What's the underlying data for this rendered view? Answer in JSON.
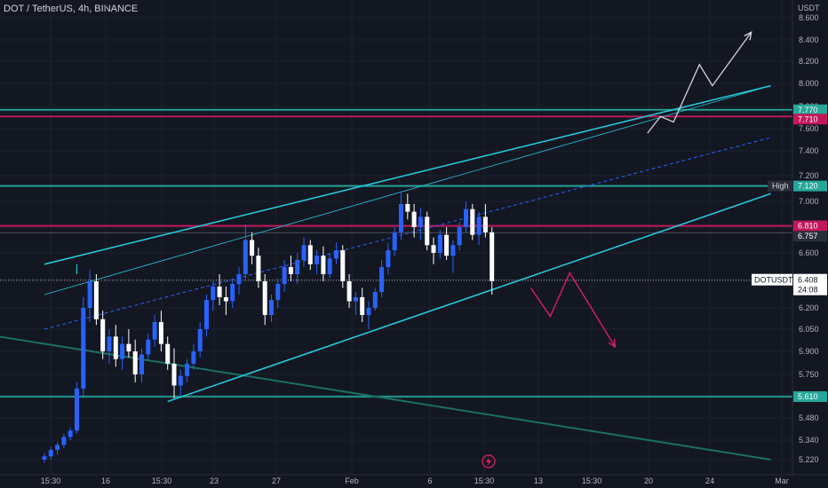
{
  "header": {
    "title": "DOT / TetherUS, 4h, BINANCE"
  },
  "colors": {
    "background": "#131722",
    "up": "#2962ff",
    "down": "#ffffff",
    "channel": "#26c6da",
    "resistance_teal": "#26a69a",
    "resistance_magenta": "#c2185b",
    "trend_teal": "#1b6f64",
    "projection_up": "#d1d4dc",
    "projection_down": "#e91e63"
  },
  "chart_data": {
    "type": "candlestick",
    "symbol": "DOTUSDT",
    "interval": "4h",
    "y_unit": "USDT",
    "ylim": [
      5.16,
      8.75
    ],
    "y_ticks": [
      "8.600",
      "8.400",
      "8.200",
      "8.000",
      "7.800",
      "7.600",
      "7.400",
      "7.200",
      "7.000",
      "6.800",
      "6.600",
      "6.400",
      "6.200",
      "6.050",
      "5.900",
      "5.750",
      "5.610",
      "5.480",
      "5.340",
      "5.220"
    ],
    "x_ticks": [
      "15:30",
      "16",
      "15:30",
      "23",
      "27",
      "Feb",
      "6",
      "15:30",
      "13",
      "15:30",
      "20",
      "24",
      "Mar"
    ],
    "current_price": {
      "label": "DOTUSDT",
      "value": "6.408",
      "countdown": "24:08"
    },
    "price_tags": [
      {
        "value": "7.770",
        "color": "#26a69a"
      },
      {
        "value": "7.710",
        "color": "#c2185b"
      },
      {
        "value": "7.120",
        "color": "#26a69a",
        "label": "High"
      },
      {
        "value": "6.810",
        "color": "#c2185b"
      },
      {
        "value": "6.757",
        "color": "#2a2e39"
      },
      {
        "value": "5.610",
        "color": "#26a69a"
      }
    ],
    "horizontal_levels": [
      {
        "price": 7.77,
        "color": "#26a69a"
      },
      {
        "price": 7.71,
        "color": "#c2185b"
      },
      {
        "price": 7.12,
        "color": "#26a69a"
      },
      {
        "price": 6.81,
        "color": "#c2185b"
      },
      {
        "price": 5.61,
        "color": "#26a69a"
      }
    ],
    "candles": [
      [
        5.22,
        5.26,
        5.2,
        5.24
      ],
      [
        5.24,
        5.3,
        5.22,
        5.28
      ],
      [
        5.28,
        5.33,
        5.25,
        5.31
      ],
      [
        5.31,
        5.38,
        5.29,
        5.36
      ],
      [
        5.36,
        5.42,
        5.34,
        5.4
      ],
      [
        5.4,
        5.7,
        5.38,
        5.66
      ],
      [
        5.66,
        6.28,
        5.6,
        6.2
      ],
      [
        6.2,
        6.48,
        6.1,
        6.4
      ],
      [
        6.4,
        6.45,
        6.08,
        6.12
      ],
      [
        6.12,
        6.18,
        5.85,
        5.9
      ],
      [
        5.9,
        6.05,
        5.82,
        6.0
      ],
      [
        6.0,
        6.08,
        5.8,
        5.85
      ],
      [
        5.85,
        6.0,
        5.78,
        5.95
      ],
      [
        5.95,
        6.05,
        5.86,
        5.9
      ],
      [
        5.9,
        5.98,
        5.7,
        5.75
      ],
      [
        5.75,
        5.92,
        5.7,
        5.88
      ],
      [
        5.88,
        6.02,
        5.84,
        5.98
      ],
      [
        5.98,
        6.15,
        5.93,
        6.1
      ],
      [
        6.1,
        6.18,
        5.9,
        5.95
      ],
      [
        5.95,
        6.0,
        5.78,
        5.82
      ],
      [
        5.82,
        5.92,
        5.6,
        5.68
      ],
      [
        5.68,
        5.78,
        5.62,
        5.74
      ],
      [
        5.74,
        5.85,
        5.7,
        5.82
      ],
      [
        5.82,
        5.95,
        5.78,
        5.9
      ],
      [
        5.9,
        6.1,
        5.86,
        6.05
      ],
      [
        6.05,
        6.3,
        6.0,
        6.26
      ],
      [
        6.26,
        6.4,
        6.18,
        6.36
      ],
      [
        6.36,
        6.45,
        6.22,
        6.28
      ],
      [
        6.28,
        6.36,
        6.15,
        6.25
      ],
      [
        6.25,
        6.42,
        6.2,
        6.38
      ],
      [
        6.38,
        6.5,
        6.3,
        6.45
      ],
      [
        6.45,
        6.82,
        6.4,
        6.7
      ],
      [
        6.7,
        6.76,
        6.52,
        6.58
      ],
      [
        6.58,
        6.64,
        6.35,
        6.4
      ],
      [
        6.4,
        6.45,
        6.08,
        6.15
      ],
      [
        6.15,
        6.3,
        6.1,
        6.26
      ],
      [
        6.26,
        6.42,
        6.2,
        6.38
      ],
      [
        6.38,
        6.55,
        6.32,
        6.5
      ],
      [
        6.5,
        6.58,
        6.4,
        6.45
      ],
      [
        6.45,
        6.6,
        6.38,
        6.55
      ],
      [
        6.55,
        6.72,
        6.5,
        6.66
      ],
      [
        6.66,
        6.7,
        6.48,
        6.52
      ],
      [
        6.52,
        6.62,
        6.45,
        6.58
      ],
      [
        6.58,
        6.65,
        6.4,
        6.45
      ],
      [
        6.45,
        6.6,
        6.42,
        6.56
      ],
      [
        6.56,
        6.68,
        6.52,
        6.62
      ],
      [
        6.62,
        6.66,
        6.35,
        6.4
      ],
      [
        6.4,
        6.45,
        6.2,
        6.25
      ],
      [
        6.25,
        6.32,
        6.15,
        6.28
      ],
      [
        6.28,
        6.35,
        6.1,
        6.15
      ],
      [
        6.15,
        6.25,
        6.05,
        6.2
      ],
      [
        6.2,
        6.35,
        6.18,
        6.32
      ],
      [
        6.32,
        6.55,
        6.28,
        6.5
      ],
      [
        6.5,
        6.68,
        6.45,
        6.62
      ],
      [
        6.62,
        6.8,
        6.58,
        6.76
      ],
      [
        6.76,
        7.08,
        6.7,
        6.98
      ],
      [
        6.98,
        7.06,
        6.86,
        6.92
      ],
      [
        6.92,
        6.98,
        6.72,
        6.8
      ],
      [
        6.8,
        6.95,
        6.7,
        6.88
      ],
      [
        6.88,
        6.92,
        6.62,
        6.66
      ],
      [
        6.66,
        6.72,
        6.52,
        6.6
      ],
      [
        6.6,
        6.78,
        6.56,
        6.74
      ],
      [
        6.74,
        6.8,
        6.55,
        6.58
      ],
      [
        6.58,
        6.7,
        6.46,
        6.66
      ],
      [
        6.66,
        6.84,
        6.62,
        6.8
      ],
      [
        6.8,
        7.0,
        6.76,
        6.94
      ],
      [
        6.94,
        6.98,
        6.7,
        6.74
      ],
      [
        6.74,
        6.92,
        6.66,
        6.88
      ],
      [
        6.88,
        6.98,
        6.72,
        6.76
      ],
      [
        6.76,
        6.8,
        6.3,
        6.4
      ]
    ],
    "channel_upper": {
      "from": [
        0,
        6.52
      ],
      "to": [
        112,
        7.98
      ]
    },
    "channel_lower": {
      "from": [
        19,
        5.58
      ],
      "to": [
        112,
        7.06
      ]
    },
    "channel_mid_dashed": {
      "from": [
        0,
        6.05
      ],
      "to": [
        112,
        7.52
      ]
    },
    "inner_line": {
      "from": [
        0,
        6.3
      ],
      "to": [
        112,
        7.98
      ]
    },
    "descending_trend": {
      "from": [
        -21,
        6.1
      ],
      "to": [
        112,
        5.22
      ]
    },
    "projection_up": [
      [
        93,
        7.56
      ],
      [
        95,
        7.71
      ],
      [
        97,
        7.66
      ],
      [
        101,
        8.17
      ],
      [
        103,
        7.98
      ],
      [
        109,
        8.47
      ]
    ],
    "projection_down": [
      [
        75,
        6.35
      ],
      [
        78,
        6.14
      ],
      [
        81,
        6.46
      ],
      [
        88,
        5.93
      ]
    ]
  }
}
